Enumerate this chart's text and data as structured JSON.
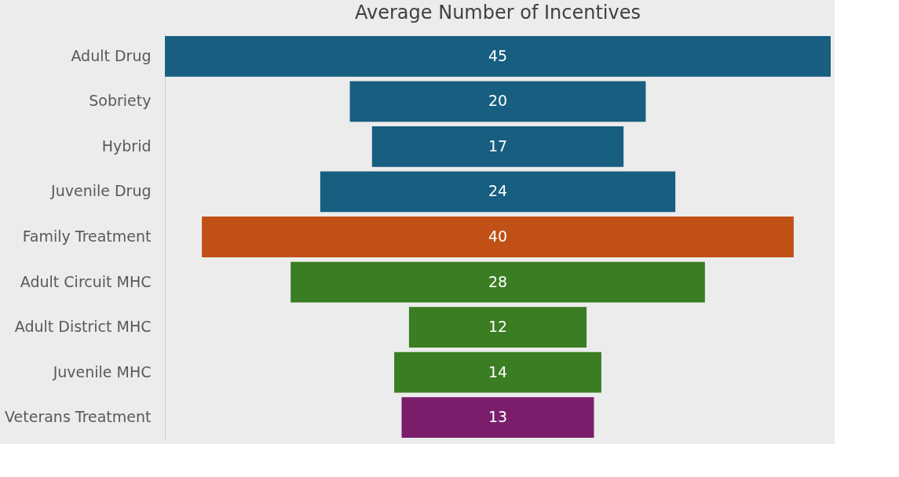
{
  "chart_data": {
    "type": "other",
    "title": "Average Number of Incentives",
    "categories": [
      "Adult Drug",
      "Sobriety",
      "Hybrid",
      "Juvenile Drug",
      "Family Treatment",
      "Adult Circuit MHC",
      "Adult District MHC",
      "Juvenile MHC",
      "Veterans Treatment"
    ],
    "values": [
      45,
      20,
      17,
      24,
      40,
      28,
      12,
      14,
      13
    ],
    "colors": [
      "#175e80",
      "#175e80",
      "#175e80",
      "#175e80",
      "#c05016",
      "#3a7d22",
      "#3a7d22",
      "#3a7d22",
      "#7a1e6c"
    ],
    "data_labels": true
  }
}
